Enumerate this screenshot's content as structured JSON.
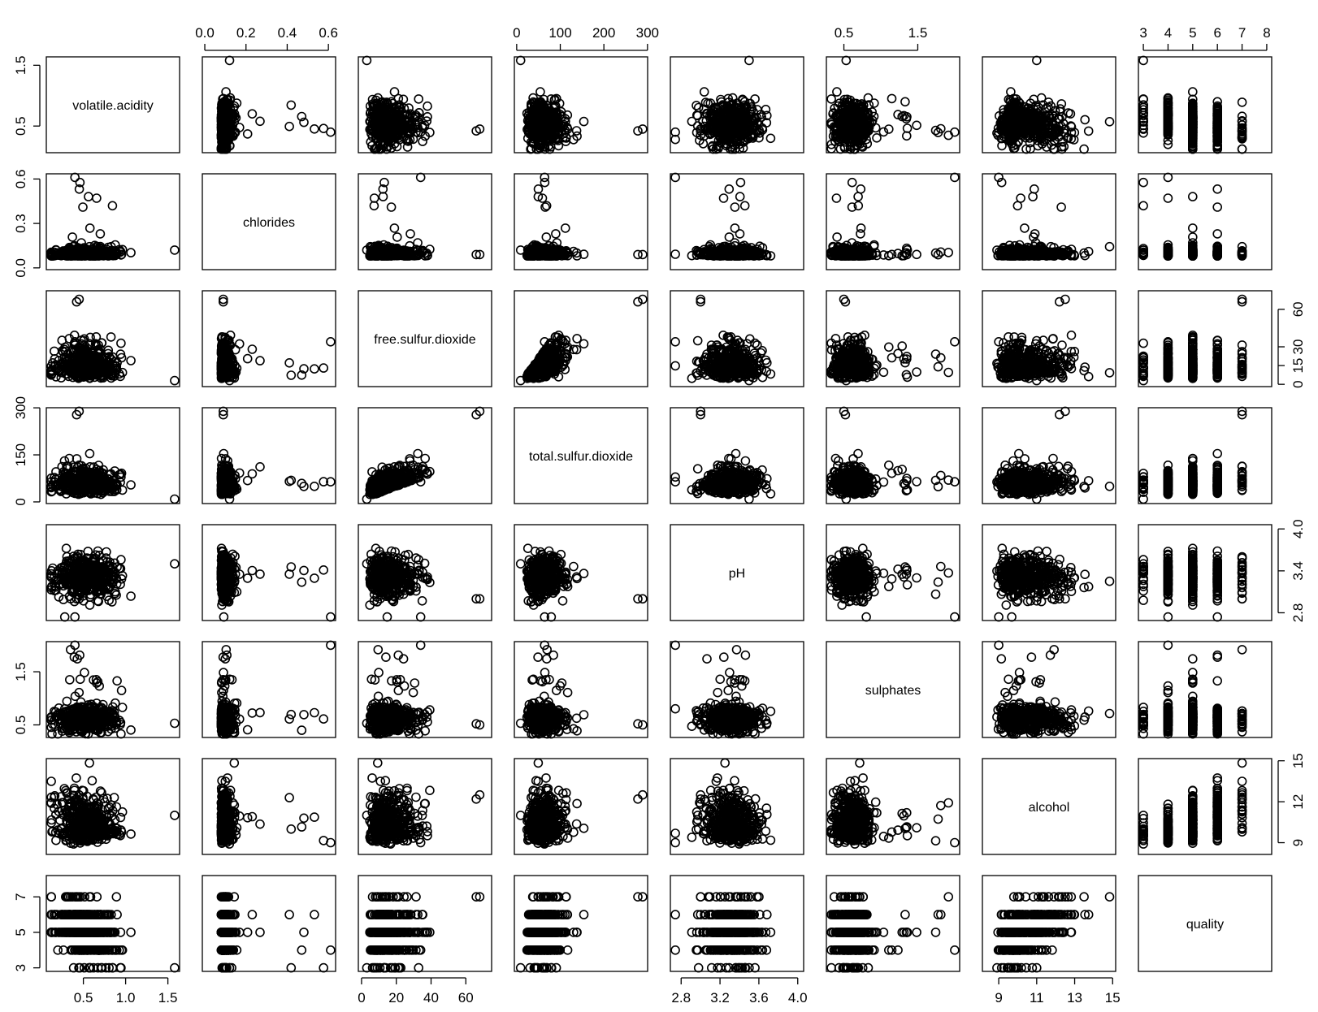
{
  "chart_data": {
    "type": "scatter",
    "title": "",
    "variables": [
      "volatile.acidity",
      "chlorides",
      "free.sulfur.dioxide",
      "total.sulfur.dioxide",
      "pH",
      "sulphates",
      "alcohol",
      "quality"
    ],
    "ranges": {
      "volatile.acidity": [
        0.12,
        1.58
      ],
      "chlorides": [
        0.012,
        0.611
      ],
      "free.sulfur.dioxide": [
        1,
        72
      ],
      "total.sulfur.dioxide": [
        6,
        289
      ],
      "pH": [
        2.74,
        4.01
      ],
      "sulphates": [
        0.33,
        2.0
      ],
      "alcohol": [
        8.4,
        14.9
      ],
      "quality": [
        3,
        8
      ]
    },
    "axis_ticks": {
      "volatile.acidity": {
        "side": "left",
        "values": [
          0.5,
          1.5
        ],
        "labels": [
          "0.5",
          "1.5"
        ]
      },
      "volatile.acidity_bottom": {
        "side": "bottom",
        "values": [
          0.5,
          1.0,
          1.5
        ],
        "labels": [
          "0.5",
          "1.0",
          "1.5"
        ]
      },
      "chlorides": {
        "side": "left",
        "values": [
          0.0,
          0.3,
          0.6
        ],
        "labels": [
          "0.0",
          "0.3",
          "0.6"
        ]
      },
      "chlorides_top": {
        "side": "top",
        "values": [
          0.0,
          0.2,
          0.4,
          0.6
        ],
        "labels": [
          "0.0",
          "0.2",
          "0.4",
          "0.6"
        ]
      },
      "free.sulfur.dioxide": {
        "side": "right",
        "values": [
          0,
          15,
          30,
          60
        ],
        "labels": [
          "0",
          "15",
          "30",
          "60"
        ]
      },
      "free.sulfur.dioxide_bottom": {
        "side": "bottom",
        "values": [
          0,
          20,
          40,
          60
        ],
        "labels": [
          "0",
          "20",
          "40",
          "60"
        ]
      },
      "total.sulfur.dioxide": {
        "side": "left",
        "values": [
          0,
          150,
          300
        ],
        "labels": [
          "0",
          "150",
          "300"
        ]
      },
      "total.sulfur.dioxide_top": {
        "side": "top",
        "values": [
          0,
          100,
          200,
          300
        ],
        "labels": [
          "0",
          "100",
          "200",
          "300"
        ]
      },
      "pH": {
        "side": "right",
        "values": [
          2.8,
          3.4,
          4.0
        ],
        "labels": [
          "2.8",
          "3.4",
          "4.0"
        ]
      },
      "pH_bottom": {
        "side": "bottom",
        "values": [
          2.8,
          3.2,
          3.6,
          4.0
        ],
        "labels": [
          "2.8",
          "3.2",
          "3.6",
          "4.0"
        ]
      },
      "sulphates": {
        "side": "left",
        "values": [
          0.5,
          1.5
        ],
        "labels": [
          "0.5",
          "1.5"
        ]
      },
      "sulphates_top": {
        "side": "top",
        "values": [
          0.5,
          1.5
        ],
        "labels": [
          "0.5",
          "1.5"
        ]
      },
      "alcohol": {
        "side": "right",
        "values": [
          9,
          12,
          15
        ],
        "labels": [
          "9",
          "12",
          "15"
        ]
      },
      "alcohol_bottom": {
        "side": "bottom",
        "values": [
          9,
          11,
          13,
          15
        ],
        "labels": [
          "9",
          "11",
          "13",
          "15"
        ]
      },
      "quality": {
        "side": "left",
        "values": [
          3,
          5,
          7
        ],
        "labels": [
          "3",
          "5",
          "7"
        ]
      },
      "quality_top": {
        "side": "top",
        "values": [
          3,
          4,
          5,
          6,
          7,
          8
        ],
        "labels": [
          "3",
          "4",
          "5",
          "6",
          "7",
          "8"
        ]
      }
    },
    "marker": "open-circle",
    "marker_color": "#000000",
    "grid": false,
    "legend": "none"
  }
}
